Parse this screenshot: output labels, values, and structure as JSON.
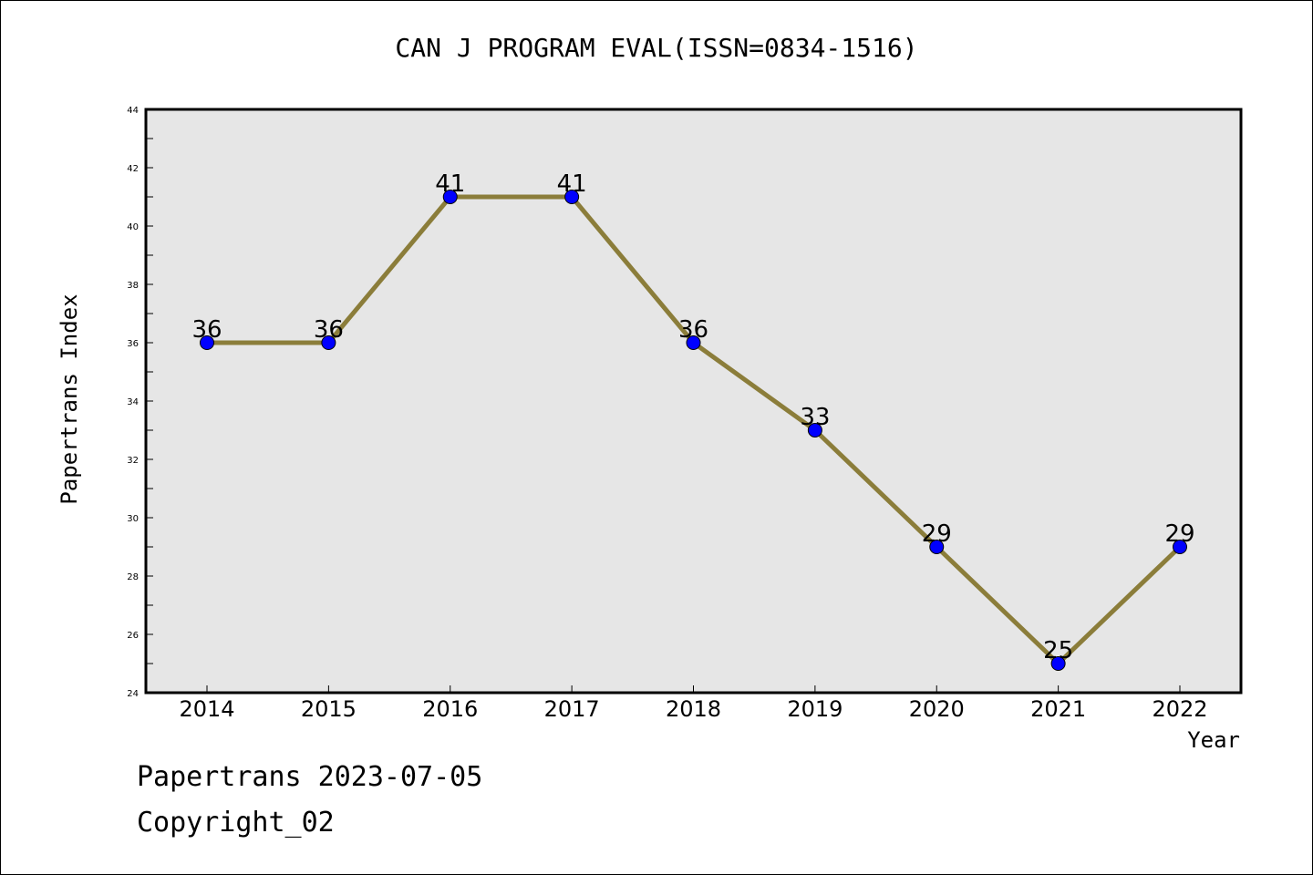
{
  "footer": {
    "line1": "Papertrans 2023-07-05",
    "line2": "Copyright_02"
  },
  "colors": {
    "line": "#8B7D3A",
    "marker": "#0000FF",
    "plot_bg": "#E6E6E6"
  },
  "chart_data": {
    "type": "line",
    "title": "CAN J PROGRAM EVAL(ISSN=0834-1516)",
    "xlabel": "Year",
    "ylabel": "Papertrans Index",
    "categories": [
      "2014",
      "2015",
      "2016",
      "2017",
      "2018",
      "2019",
      "2020",
      "2021",
      "2022"
    ],
    "series": [
      {
        "values": [
          36,
          36,
          41,
          41,
          36,
          33,
          29,
          25,
          29
        ]
      }
    ],
    "ylim": [
      24,
      44
    ],
    "yticks": [
      24,
      26,
      28,
      30,
      32,
      34,
      36,
      38,
      40,
      42,
      44
    ],
    "grid": false,
    "data_labels": true
  }
}
